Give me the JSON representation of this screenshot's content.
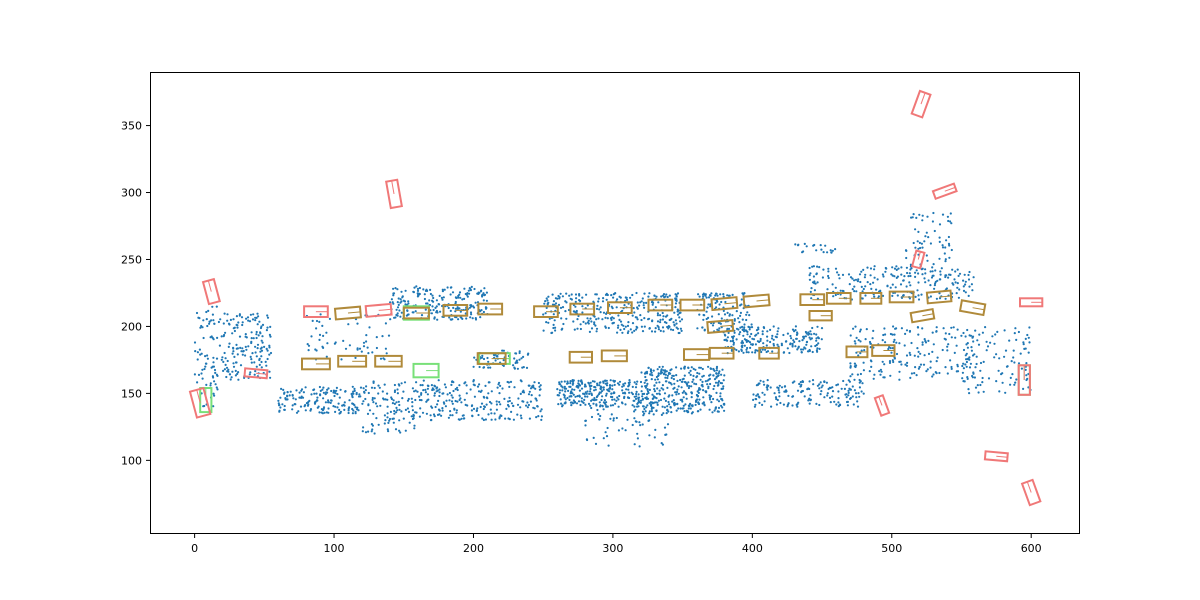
{
  "chart_data": {
    "type": "scatter",
    "title": "",
    "xlabel": "",
    "ylabel": "",
    "xlim": [
      -32,
      635
    ],
    "ylim": [
      45,
      390
    ],
    "grid": false,
    "legend": "none",
    "x_ticks": [
      0,
      100,
      200,
      300,
      400,
      500,
      600
    ],
    "y_ticks": [
      100,
      150,
      200,
      250,
      300,
      350
    ],
    "colors": {
      "points": "#1f77b4",
      "boxes_a": "#f07878",
      "boxes_b": "#78e078",
      "boxes_overlap": "#b08a3a"
    },
    "point_clusters": [
      {
        "xr": [
          0,
          20
        ],
        "yr": [
          140,
          215
        ],
        "n": 80
      },
      {
        "xr": [
          20,
          55
        ],
        "yr": [
          160,
          210
        ],
        "n": 160
      },
      {
        "xr": [
          60,
          120
        ],
        "yr": [
          135,
          155
        ],
        "n": 160
      },
      {
        "xr": [
          120,
          160
        ],
        "yr": [
          120,
          160
        ],
        "n": 120
      },
      {
        "xr": [
          140,
          210
        ],
        "yr": [
          205,
          230
        ],
        "n": 220
      },
      {
        "xr": [
          160,
          250
        ],
        "yr": [
          130,
          160
        ],
        "n": 240
      },
      {
        "xr": [
          200,
          240
        ],
        "yr": [
          168,
          182
        ],
        "n": 60
      },
      {
        "xr": [
          250,
          350
        ],
        "yr": [
          195,
          225
        ],
        "n": 320
      },
      {
        "xr": [
          260,
          320
        ],
        "yr": [
          140,
          160
        ],
        "n": 260
      },
      {
        "xr": [
          320,
          380
        ],
        "yr": [
          135,
          170
        ],
        "n": 360
      },
      {
        "xr": [
          280,
          340
        ],
        "yr": [
          110,
          140
        ],
        "n": 60
      },
      {
        "xr": [
          380,
          450
        ],
        "yr": [
          180,
          200
        ],
        "n": 200
      },
      {
        "xr": [
          400,
          480
        ],
        "yr": [
          140,
          160
        ],
        "n": 160
      },
      {
        "xr": [
          440,
          560
        ],
        "yr": [
          220,
          245
        ],
        "n": 220
      },
      {
        "xr": [
          470,
          560
        ],
        "yr": [
          160,
          200
        ],
        "n": 200
      },
      {
        "xr": [
          510,
          545
        ],
        "yr": [
          235,
          285
        ],
        "n": 70
      },
      {
        "xr": [
          550,
          600
        ],
        "yr": [
          150,
          200
        ],
        "n": 100
      },
      {
        "xr": [
          80,
          140
        ],
        "yr": [
          175,
          210
        ],
        "n": 60
      },
      {
        "xr": [
          360,
          400
        ],
        "yr": [
          195,
          225
        ],
        "n": 120
      },
      {
        "xr": [
          430,
          460
        ],
        "yr": [
          255,
          262
        ],
        "n": 20
      }
    ],
    "boxes_a": [
      {
        "cx": 143,
        "cy": 299,
        "w": 8,
        "h": 20,
        "angle": 10
      },
      {
        "cx": 521,
        "cy": 366,
        "w": 8,
        "h": 18,
        "angle": -20
      },
      {
        "cx": 538,
        "cy": 301,
        "w": 16,
        "h": 6,
        "angle": 20
      },
      {
        "cx": 519,
        "cy": 250,
        "w": 6,
        "h": 12,
        "angle": -15
      },
      {
        "cx": 12,
        "cy": 226,
        "w": 8,
        "h": 17,
        "angle": 15
      },
      {
        "cx": 44,
        "cy": 165,
        "w": 16,
        "h": 6,
        "angle": -5
      },
      {
        "cx": 4,
        "cy": 143,
        "w": 10,
        "h": 20,
        "angle": 15
      },
      {
        "cx": 595,
        "cy": 160,
        "w": 8,
        "h": 22,
        "angle": 0
      },
      {
        "cx": 600,
        "cy": 218,
        "w": 16,
        "h": 6,
        "angle": 0
      },
      {
        "cx": 493,
        "cy": 141,
        "w": 6,
        "h": 14,
        "angle": 20
      },
      {
        "cx": 575,
        "cy": 103,
        "w": 16,
        "h": 6,
        "angle": -5
      },
      {
        "cx": 600,
        "cy": 76,
        "w": 8,
        "h": 17,
        "angle": 20
      },
      {
        "cx": 132,
        "cy": 212,
        "w": 18,
        "h": 8,
        "angle": 5
      },
      {
        "cx": 87,
        "cy": 211,
        "w": 17,
        "h": 8,
        "angle": 0
      }
    ],
    "boxes_b": [
      {
        "cx": 8,
        "cy": 145,
        "w": 8,
        "h": 18,
        "angle": 0
      },
      {
        "cx": 595,
        "cy": 160,
        "w": 8,
        "h": 22,
        "angle": 0
      },
      {
        "cx": 166,
        "cy": 167,
        "w": 18,
        "h": 10,
        "angle": 0
      },
      {
        "cx": 159,
        "cy": 210,
        "w": 18,
        "h": 10,
        "angle": 0
      },
      {
        "cx": 215,
        "cy": 176,
        "w": 22,
        "h": 8,
        "angle": 0
      }
    ],
    "boxes_overlap": [
      {
        "cx": 87,
        "cy": 172,
        "w": 20,
        "h": 8,
        "angle": 0
      },
      {
        "cx": 113,
        "cy": 174,
        "w": 20,
        "h": 8,
        "angle": 0
      },
      {
        "cx": 139,
        "cy": 174,
        "w": 19,
        "h": 8,
        "angle": 0
      },
      {
        "cx": 110,
        "cy": 210,
        "w": 18,
        "h": 8,
        "angle": 5
      },
      {
        "cx": 159,
        "cy": 210,
        "w": 18,
        "h": 8,
        "angle": 0
      },
      {
        "cx": 187,
        "cy": 212,
        "w": 17,
        "h": 8,
        "angle": 0
      },
      {
        "cx": 212,
        "cy": 213,
        "w": 17,
        "h": 8,
        "angle": 0
      },
      {
        "cx": 213,
        "cy": 176,
        "w": 20,
        "h": 8,
        "angle": 0
      },
      {
        "cx": 252,
        "cy": 211,
        "w": 17,
        "h": 8,
        "angle": 0
      },
      {
        "cx": 278,
        "cy": 213,
        "w": 17,
        "h": 8,
        "angle": 0
      },
      {
        "cx": 305,
        "cy": 214,
        "w": 17,
        "h": 8,
        "angle": 0
      },
      {
        "cx": 334,
        "cy": 216,
        "w": 17,
        "h": 8,
        "angle": 0
      },
      {
        "cx": 357,
        "cy": 216,
        "w": 17,
        "h": 8,
        "angle": 0
      },
      {
        "cx": 380,
        "cy": 217,
        "w": 18,
        "h": 8,
        "angle": 5
      },
      {
        "cx": 403,
        "cy": 219,
        "w": 18,
        "h": 8,
        "angle": 5
      },
      {
        "cx": 277,
        "cy": 177,
        "w": 16,
        "h": 8,
        "angle": 0
      },
      {
        "cx": 301,
        "cy": 178,
        "w": 18,
        "h": 8,
        "angle": 0
      },
      {
        "cx": 360,
        "cy": 179,
        "w": 18,
        "h": 8,
        "angle": 0
      },
      {
        "cx": 378,
        "cy": 180,
        "w": 17,
        "h": 8,
        "angle": 0
      },
      {
        "cx": 412,
        "cy": 180,
        "w": 14,
        "h": 8,
        "angle": 0
      },
      {
        "cx": 377,
        "cy": 200,
        "w": 18,
        "h": 8,
        "angle": 5
      },
      {
        "cx": 443,
        "cy": 220,
        "w": 17,
        "h": 8,
        "angle": 0
      },
      {
        "cx": 462,
        "cy": 221,
        "w": 17,
        "h": 8,
        "angle": 0
      },
      {
        "cx": 485,
        "cy": 221,
        "w": 15,
        "h": 8,
        "angle": 0
      },
      {
        "cx": 507,
        "cy": 222,
        "w": 17,
        "h": 8,
        "angle": 0
      },
      {
        "cx": 534,
        "cy": 222,
        "w": 17,
        "h": 8,
        "angle": 5
      },
      {
        "cx": 449,
        "cy": 208,
        "w": 16,
        "h": 7,
        "angle": 0
      },
      {
        "cx": 522,
        "cy": 208,
        "w": 16,
        "h": 7,
        "angle": 10
      },
      {
        "cx": 558,
        "cy": 214,
        "w": 17,
        "h": 8,
        "angle": -10
      },
      {
        "cx": 475,
        "cy": 181,
        "w": 15,
        "h": 8,
        "angle": 0
      },
      {
        "cx": 494,
        "cy": 182,
        "w": 16,
        "h": 8,
        "angle": 0
      }
    ]
  }
}
